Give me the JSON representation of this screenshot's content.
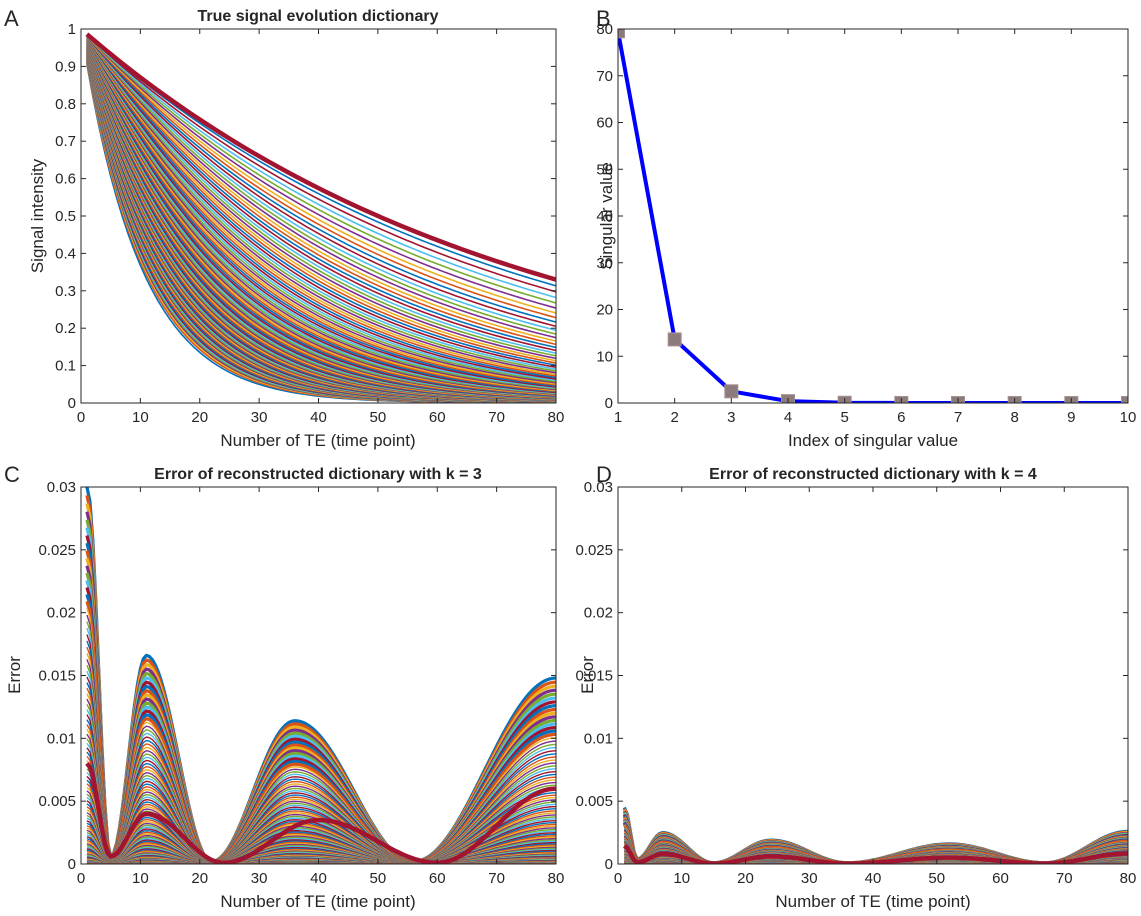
{
  "chart_data": [
    {
      "panel_letter": "A",
      "type": "line",
      "title": "True signal evolution dictionary",
      "xlabel": "Number of TE (time point)",
      "ylabel": "Signal intensity",
      "xlim": [
        0,
        80
      ],
      "ylim": [
        0,
        1
      ],
      "xticks": [
        "0",
        "10",
        "20",
        "30",
        "40",
        "50",
        "60",
        "70",
        "80"
      ],
      "yticks": [
        "0",
        "0.1",
        "0.2",
        "0.3",
        "0.4",
        "0.5",
        "0.6",
        "0.7",
        "0.8",
        "0.9",
        "1"
      ],
      "x_range": [
        1,
        80
      ],
      "num_curves": 100,
      "topmost_curve_samples": [
        [
          1,
          0.986
        ],
        [
          10,
          0.87
        ],
        [
          20,
          0.76
        ],
        [
          40,
          0.58
        ],
        [
          60,
          0.44
        ],
        [
          80,
          0.33
        ]
      ],
      "bottom_curve_samples": [
        [
          1,
          0.9
        ],
        [
          10,
          0.37
        ],
        [
          20,
          0.13
        ],
        [
          30,
          0.04
        ],
        [
          40,
          0.01
        ],
        [
          80,
          0.0
        ]
      ],
      "grid": false
    },
    {
      "panel_letter": "B",
      "type": "line",
      "title": "",
      "xlabel": "Index of singular value",
      "ylabel": "Singular value",
      "xlim": [
        1,
        10
      ],
      "ylim": [
        0,
        80
      ],
      "xticks": [
        "1",
        "2",
        "3",
        "4",
        "5",
        "6",
        "7",
        "8",
        "9",
        "10"
      ],
      "yticks": [
        "0",
        "10",
        "20",
        "30",
        "40",
        "50",
        "60",
        "70",
        "80"
      ],
      "x": [
        1,
        2,
        3,
        4,
        5,
        6,
        7,
        8,
        9,
        10
      ],
      "values": [
        79.5,
        13.6,
        2.5,
        0.4,
        0.05,
        0.01,
        0,
        0,
        0,
        0
      ],
      "line_color": "#0000ff",
      "marker": "square",
      "marker_color": "#8c7b7b",
      "grid": false
    },
    {
      "panel_letter": "C",
      "type": "line",
      "title": "Error of reconstructed dictionary with k = 3",
      "xlabel": "Number of TE (time point)",
      "ylabel": "Error",
      "xlim": [
        0,
        80
      ],
      "ylim": [
        0,
        0.03
      ],
      "xticks": [
        "0",
        "10",
        "20",
        "30",
        "40",
        "50",
        "60",
        "70",
        "80"
      ],
      "yticks": [
        "0",
        "0.005",
        "0.01",
        "0.015",
        "0.02",
        "0.025",
        "0.03"
      ],
      "x_range": [
        1,
        80
      ],
      "num_curves": 100,
      "largest_curve_samples": [
        [
          1,
          0.03
        ],
        [
          5,
          0.0006
        ],
        [
          11,
          0.0166
        ],
        [
          22,
          0.0002
        ],
        [
          36,
          0.0114
        ],
        [
          56,
          0.0002
        ],
        [
          80,
          0.0148
        ]
      ],
      "highlighted_curve_samples": [
        [
          1,
          0.008
        ],
        [
          5,
          0.0006
        ],
        [
          11,
          0.004
        ],
        [
          24,
          0.0001
        ],
        [
          40,
          0.0035
        ],
        [
          60,
          0.0001
        ],
        [
          80,
          0.006
        ]
      ],
      "grid": false
    },
    {
      "panel_letter": "D",
      "type": "line",
      "title": "Error of reconstructed dictionary with k = 4",
      "xlabel": "Number of TE (time point)",
      "ylabel": "Error",
      "xlim": [
        0,
        80
      ],
      "ylim": [
        0,
        0.03
      ],
      "xticks": [
        "0",
        "10",
        "20",
        "30",
        "40",
        "50",
        "60",
        "70",
        "80"
      ],
      "yticks": [
        "0",
        "0.005",
        "0.01",
        "0.015",
        "0.02",
        "0.025",
        "0.03"
      ],
      "x_range": [
        1,
        80
      ],
      "num_curves": 100,
      "largest_curve_samples": [
        [
          1,
          0.0045
        ],
        [
          3,
          0.0004
        ],
        [
          7,
          0.0025
        ],
        [
          15,
          0.0001
        ],
        [
          24,
          0.0019
        ],
        [
          36,
          0.0001
        ],
        [
          52,
          0.0016
        ],
        [
          67,
          0.0001
        ],
        [
          80,
          0.0026
        ]
      ],
      "grid": false
    }
  ],
  "colors": {
    "matlab_order": [
      "#0072BD",
      "#D95319",
      "#EDB120",
      "#7E2F8E",
      "#77AC30",
      "#4DBEEE",
      "#A2142F"
    ],
    "highlight": "#A2142F",
    "singular_line": "#0000ff",
    "singular_marker": "#8c7b7b"
  }
}
